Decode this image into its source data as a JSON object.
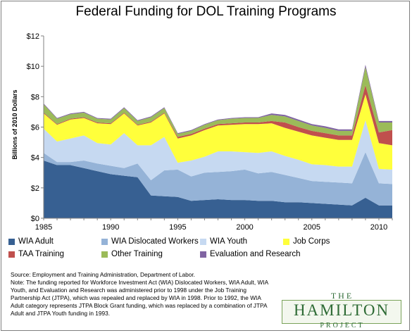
{
  "chart_data": {
    "type": "area",
    "stacked": true,
    "title": "Federal Funding for DOL Training Programs",
    "ylabel": "Billions of 2010 Dollars",
    "xlabel": "",
    "xlim": [
      1985,
      2011
    ],
    "ylim": [
      0,
      12
    ],
    "x_ticks": [
      1985,
      1990,
      1995,
      2000,
      2005,
      2010
    ],
    "y_ticks": [
      "$0",
      "$2",
      "$4",
      "$6",
      "$8",
      "$10",
      "$12"
    ],
    "grid": false,
    "legend_position": "bottom",
    "x": [
      1985,
      1986,
      1987,
      1988,
      1989,
      1990,
      1991,
      1992,
      1993,
      1994,
      1995,
      1996,
      1997,
      1998,
      1999,
      2000,
      2001,
      2002,
      2003,
      2004,
      2005,
      2006,
      2007,
      2008,
      2009,
      2010,
      2011
    ],
    "series": [
      {
        "name": "WIA Adult",
        "color": "#376092",
        "values": [
          3.8,
          3.5,
          3.5,
          3.3,
          3.1,
          2.9,
          2.8,
          2.7,
          1.5,
          1.45,
          1.4,
          1.15,
          1.2,
          1.25,
          1.2,
          1.2,
          1.15,
          1.15,
          1.05,
          1.05,
          1.0,
          0.95,
          0.9,
          0.85,
          1.35,
          0.85,
          0.85
        ]
      },
      {
        "name": "WIA Dislocated Workers",
        "color": "#95b3d7",
        "values": [
          0.5,
          0.2,
          0.2,
          0.5,
          0.5,
          0.55,
          0.5,
          0.9,
          1.0,
          1.7,
          1.8,
          1.6,
          1.8,
          1.8,
          1.9,
          2.0,
          1.8,
          1.9,
          1.8,
          1.6,
          1.45,
          1.45,
          1.45,
          1.45,
          3.0,
          1.45,
          1.4
        ]
      },
      {
        "name": "WIA Youth",
        "color": "#c6d9f1",
        "values": [
          1.6,
          1.35,
          1.55,
          1.65,
          1.35,
          1.4,
          2.3,
          1.2,
          2.3,
          2.2,
          0.45,
          1.05,
          1.05,
          1.35,
          1.3,
          1.15,
          1.35,
          1.35,
          1.25,
          1.2,
          1.1,
          1.1,
          1.05,
          1.1,
          2.1,
          0.95,
          0.95
        ]
      },
      {
        "name": "Job Corps",
        "color": "#ffff3b",
        "values": [
          1.0,
          1.1,
          1.25,
          1.15,
          1.3,
          1.35,
          1.3,
          1.3,
          1.5,
          1.55,
          1.6,
          1.65,
          1.75,
          1.7,
          1.75,
          1.85,
          1.9,
          1.85,
          1.85,
          1.85,
          1.9,
          1.8,
          1.75,
          1.75,
          1.7,
          1.7,
          1.6
        ]
      },
      {
        "name": "TAA Training",
        "color": "#c0504d",
        "values": [
          0.05,
          0.05,
          0.05,
          0.05,
          0.05,
          0.05,
          0.05,
          0.05,
          0.05,
          0.05,
          0.1,
          0.1,
          0.1,
          0.1,
          0.1,
          0.1,
          0.1,
          0.15,
          0.35,
          0.3,
          0.3,
          0.3,
          0.3,
          0.3,
          0.6,
          0.7,
          1.0
        ]
      },
      {
        "name": "Other Training",
        "color": "#9bbb59",
        "values": [
          0.55,
          0.35,
          0.3,
          0.3,
          0.25,
          0.25,
          0.3,
          0.25,
          0.3,
          0.3,
          0.2,
          0.2,
          0.25,
          0.25,
          0.3,
          0.3,
          0.3,
          0.4,
          0.4,
          0.4,
          0.35,
          0.35,
          0.3,
          0.3,
          1.2,
          0.65,
          0.5
        ]
      },
      {
        "name": "Evaluation and Research",
        "color": "#8064a2",
        "values": [
          0.05,
          0.05,
          0.05,
          0.05,
          0.05,
          0.05,
          0.05,
          0.05,
          0.05,
          0.05,
          0.05,
          0.05,
          0.05,
          0.05,
          0.05,
          0.05,
          0.05,
          0.1,
          0.1,
          0.1,
          0.1,
          0.1,
          0.1,
          0.1,
          0.15,
          0.1,
          0.1
        ]
      }
    ]
  },
  "notes": {
    "source": "Source: Employment and Training Administration, Department of Labor.",
    "note": "Note: The funding reported for Workforce Investment Act (WIA) Dislocated Workers, WIA Adult, WIA Youth, and Evaluation and Research was administered prior to 1998 under the Job Training Partnership Act (JTPA), which was repealed and replaced by WIA in 1998. Prior to 1992, the WIA Adult category represents JTPA Block Grant funding, which was replaced by a combination of JTPA Adult and JTPA Youth funding in 1993."
  },
  "logo": {
    "the": "THE",
    "name": "HAMILTON",
    "project": "PROJECT",
    "color": "#2e6b35"
  }
}
